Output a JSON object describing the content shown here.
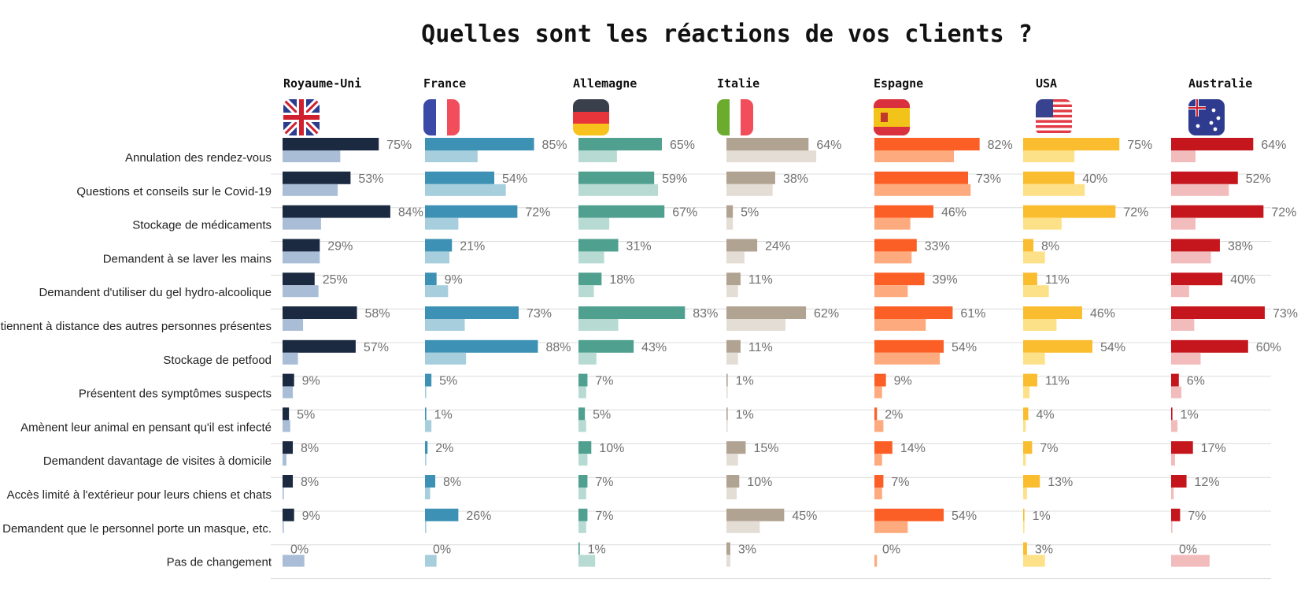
{
  "chart_data": {
    "type": "bar",
    "title": "Quelles sont les réactions de vos clients ?",
    "categories": [
      "Annulation des rendez-vous",
      "Questions et conseils sur le Covid-19",
      "Stockage de médicaments",
      "Demandent à se laver les mains",
      "Demandent d'utiliser du gel hydro-alcoolique",
      "Se tiennent à distance des autres personnes présentes",
      "Stockage de petfood",
      "Présentent des symptômes suspects",
      "Amènent leur animal en pensant qu'il est infecté",
      "Demandent davantage de visites à domicile",
      "Accès limité à l'extérieur pour leurs chiens et chats",
      "Demandent que le personnel porte un masque, etc.",
      "Pas de changement"
    ],
    "series": [
      {
        "name": "Royaume-Uni",
        "flag": "uk-flag-icon",
        "color": "#1b2a41",
        "light_color": "#a9bdd6",
        "values": [
          75,
          53,
          84,
          29,
          25,
          58,
          57,
          9,
          5,
          8,
          8,
          9,
          0
        ],
        "secondary_values": [
          45,
          43,
          30,
          29,
          28,
          16,
          12,
          8,
          6,
          3,
          1,
          1,
          17
        ]
      },
      {
        "name": "France",
        "flag": "france-flag-icon",
        "color": "#3d91b4",
        "light_color": "#a7cedd",
        "values": [
          85,
          54,
          72,
          21,
          9,
          73,
          88,
          5,
          1,
          2,
          8,
          26,
          0
        ],
        "secondary_values": [
          41,
          63,
          26,
          19,
          18,
          31,
          32,
          1,
          5,
          1,
          4,
          1,
          9
        ]
      },
      {
        "name": "Allemagne",
        "flag": "germany-flag-icon",
        "color": "#4fa08f",
        "light_color": "#b7dbd2",
        "values": [
          65,
          59,
          67,
          31,
          18,
          83,
          43,
          7,
          5,
          10,
          7,
          7,
          1
        ],
        "secondary_values": [
          30,
          62,
          24,
          20,
          12,
          31,
          14,
          6,
          6,
          7,
          6,
          6,
          13
        ]
      },
      {
        "name": "Italie",
        "flag": "italy-flag-icon",
        "color": "#b1a392",
        "light_color": "#e3ddd5",
        "values": [
          64,
          38,
          5,
          24,
          11,
          62,
          11,
          1,
          1,
          15,
          10,
          45,
          3
        ],
        "secondary_values": [
          70,
          36,
          5,
          14,
          9,
          46,
          9,
          1,
          1,
          9,
          8,
          26,
          3
        ]
      },
      {
        "name": "Espagne",
        "flag": "spain-flag-icon",
        "color": "#fc5f25",
        "light_color": "#fdab7e",
        "values": [
          82,
          73,
          46,
          33,
          39,
          61,
          54,
          9,
          2,
          14,
          7,
          54,
          0
        ],
        "secondary_values": [
          62,
          75,
          28,
          29,
          26,
          40,
          51,
          6,
          7,
          6,
          6,
          26,
          2
        ]
      },
      {
        "name": "USA",
        "flag": "usa-flag-icon",
        "color": "#fbbd30",
        "light_color": "#fde188",
        "values": [
          75,
          40,
          72,
          8,
          11,
          46,
          54,
          11,
          4,
          7,
          13,
          1,
          3
        ],
        "secondary_values": [
          40,
          48,
          30,
          17,
          20,
          26,
          17,
          5,
          2,
          2,
          3,
          1,
          17
        ]
      },
      {
        "name": "Australie",
        "flag": "australia-flag-icon",
        "color": "#c4161c",
        "light_color": "#f2bcbd",
        "values": [
          64,
          52,
          72,
          38,
          40,
          73,
          60,
          6,
          1,
          17,
          12,
          7,
          0
        ],
        "secondary_values": [
          19,
          45,
          19,
          31,
          14,
          18,
          23,
          8,
          5,
          3,
          2,
          1,
          30
        ]
      }
    ]
  }
}
